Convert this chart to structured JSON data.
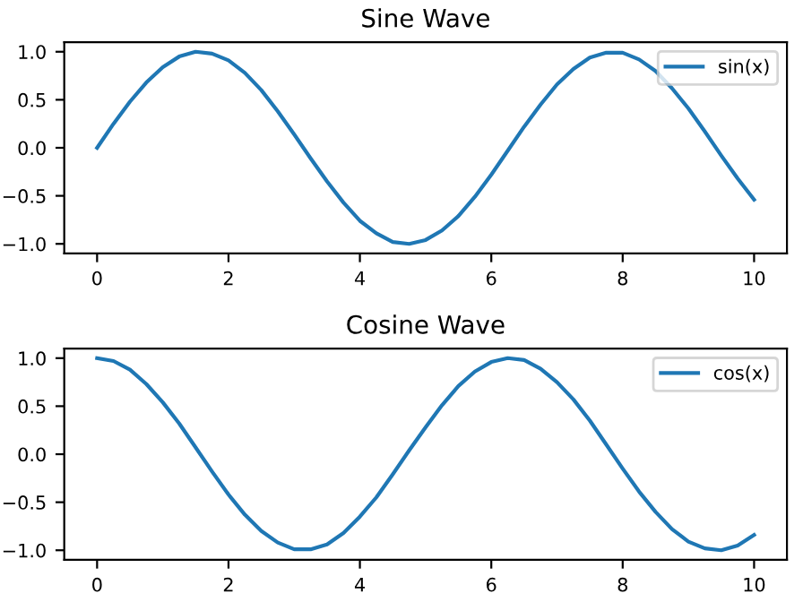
{
  "chart_data": [
    {
      "type": "line",
      "title": "Sine Wave",
      "x": [
        0,
        0.25,
        0.5,
        0.75,
        1,
        1.25,
        1.5,
        1.75,
        2,
        2.25,
        2.5,
        2.75,
        3,
        3.25,
        3.5,
        3.75,
        4,
        4.25,
        4.5,
        4.75,
        5,
        5.25,
        5.5,
        5.75,
        6,
        6.25,
        6.5,
        6.75,
        7,
        7.25,
        7.5,
        7.75,
        8,
        8.25,
        8.5,
        8.75,
        9,
        9.25,
        9.5,
        9.75,
        10
      ],
      "series": [
        {
          "name": "sin(x)",
          "color": "#1f77b4",
          "values": [
            0,
            0.25,
            0.48,
            0.68,
            0.84,
            0.95,
            1.0,
            0.98,
            0.91,
            0.78,
            0.6,
            0.38,
            0.14,
            -0.11,
            -0.35,
            -0.57,
            -0.76,
            -0.89,
            -0.98,
            -1.0,
            -0.96,
            -0.86,
            -0.71,
            -0.51,
            -0.28,
            -0.03,
            0.22,
            0.45,
            0.66,
            0.82,
            0.94,
            0.99,
            0.99,
            0.92,
            0.8,
            0.62,
            0.41,
            0.17,
            -0.08,
            -0.32,
            -0.54
          ]
        }
      ],
      "xlim": [
        -0.5,
        10.5
      ],
      "ylim": [
        -1.1,
        1.1
      ],
      "xticks": [
        0,
        2,
        4,
        6,
        8,
        10
      ],
      "yticks": [
        {
          "value": -1,
          "label": "−1.0"
        },
        {
          "value": -0.5,
          "label": "−0.5"
        },
        {
          "value": 0,
          "label": "0.0"
        },
        {
          "value": 0.5,
          "label": "0.5"
        },
        {
          "value": 1,
          "label": "1.0"
        }
      ],
      "legend": "top right",
      "grid": false
    },
    {
      "type": "line",
      "title": "Cosine Wave",
      "x": [
        0,
        0.25,
        0.5,
        0.75,
        1,
        1.25,
        1.5,
        1.75,
        2,
        2.25,
        2.5,
        2.75,
        3,
        3.25,
        3.5,
        3.75,
        4,
        4.25,
        4.5,
        4.75,
        5,
        5.25,
        5.5,
        5.75,
        6,
        6.25,
        6.5,
        6.75,
        7,
        7.25,
        7.5,
        7.75,
        8,
        8.25,
        8.5,
        8.75,
        9,
        9.25,
        9.5,
        9.75,
        10
      ],
      "series": [
        {
          "name": "cos(x)",
          "color": "#1f77b4",
          "values": [
            1.0,
            0.97,
            0.88,
            0.73,
            0.54,
            0.32,
            0.07,
            -0.18,
            -0.42,
            -0.63,
            -0.8,
            -0.92,
            -0.99,
            -0.99,
            -0.94,
            -0.82,
            -0.65,
            -0.45,
            -0.21,
            0.04,
            0.28,
            0.51,
            0.71,
            0.86,
            0.96,
            1.0,
            0.98,
            0.89,
            0.75,
            0.57,
            0.35,
            0.1,
            -0.15,
            -0.39,
            -0.6,
            -0.78,
            -0.91,
            -0.98,
            -1.0,
            -0.95,
            -0.84
          ]
        }
      ],
      "xlim": [
        -0.5,
        10.5
      ],
      "ylim": [
        -1.1,
        1.1
      ],
      "xticks": [
        0,
        2,
        4,
        6,
        8,
        10
      ],
      "yticks": [
        {
          "value": -1,
          "label": "−1.0"
        },
        {
          "value": -0.5,
          "label": "−0.5"
        },
        {
          "value": 0,
          "label": "0.0"
        },
        {
          "value": 0.5,
          "label": "0.5"
        },
        {
          "value": 1,
          "label": "1.0"
        }
      ],
      "legend": "top right",
      "grid": false
    }
  ]
}
